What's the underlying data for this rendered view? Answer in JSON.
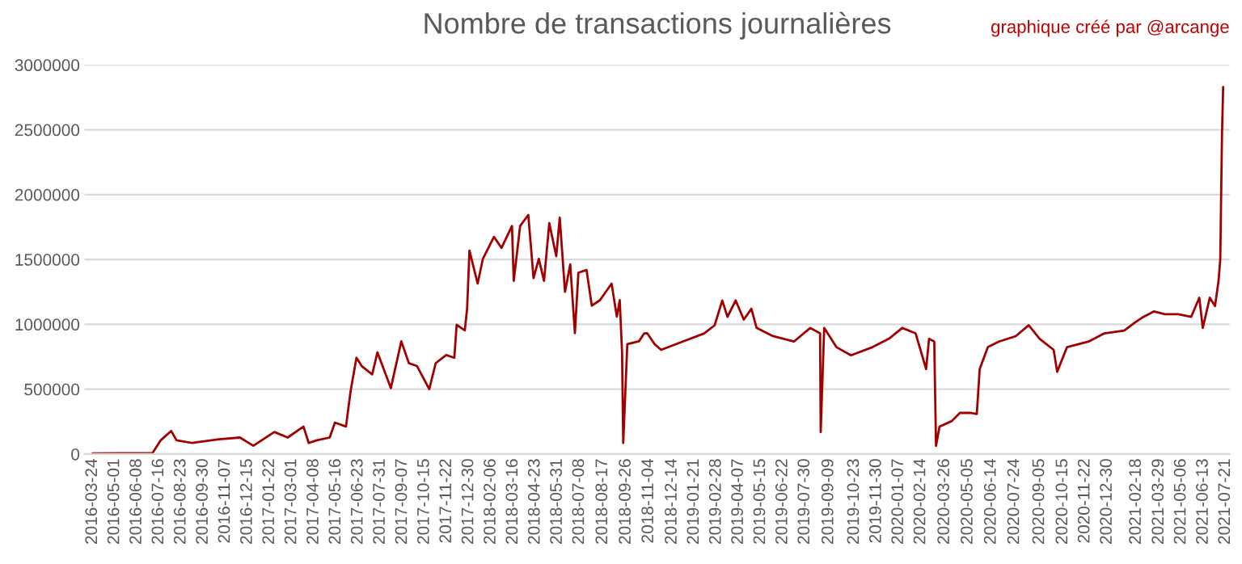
{
  "chart_data": {
    "type": "line",
    "title": "Nombre de transactions journalières",
    "annotations": [
      "graphique créé par @arcange"
    ],
    "x": [
      "2016-03-24",
      "2016-07-05",
      "2016-07-19",
      "2016-08-06",
      "2016-08-15",
      "2016-09-11",
      "2016-10-27",
      "2016-12-02",
      "2016-12-25",
      "2017-01-30",
      "2017-02-22",
      "2017-03-21",
      "2017-03-30",
      "2017-04-13",
      "2017-05-05",
      "2017-05-14",
      "2017-06-02",
      "2017-06-10",
      "2017-06-20",
      "2017-06-29",
      "2017-07-17",
      "2017-07-26",
      "2017-08-18",
      "2017-09-05",
      "2017-09-18",
      "2017-10-02",
      "2017-10-23",
      "2017-11-03",
      "2017-11-21",
      "2017-12-05",
      "2017-12-09",
      "2017-12-23",
      "2017-12-27",
      "2017-12-31",
      "2018-01-14",
      "2018-01-23",
      "2018-02-11",
      "2018-02-24",
      "2018-03-14",
      "2018-03-17",
      "2018-03-28",
      "2018-04-11",
      "2018-04-20",
      "2018-04-29",
      "2018-05-08",
      "2018-05-17",
      "2018-05-29",
      "2018-06-04",
      "2018-06-13",
      "2018-06-22",
      "2018-06-30",
      "2018-07-06",
      "2018-07-20",
      "2018-07-29",
      "2018-08-12",
      "2018-09-01",
      "2018-09-10",
      "2018-09-15",
      "2018-09-19",
      "2018-09-21",
      "2018-09-28",
      "2018-10-18",
      "2018-10-27",
      "2018-11-01",
      "2018-11-14",
      "2018-11-25",
      "2019-01-01",
      "2019-02-07",
      "2019-02-25",
      "2019-03-10",
      "2019-03-19",
      "2019-04-02",
      "2019-04-16",
      "2019-04-29",
      "2019-05-08",
      "2019-06-05",
      "2019-07-11",
      "2019-08-08",
      "2019-08-25",
      "2019-08-26",
      "2019-09-01",
      "2019-09-22",
      "2019-10-17",
      "2019-11-23",
      "2019-12-21",
      "2020-01-13",
      "2020-02-05",
      "2020-02-23",
      "2020-02-28",
      "2020-03-08",
      "2020-03-11",
      "2020-03-17",
      "2020-04-07",
      "2020-04-21",
      "2020-05-10",
      "2020-05-20",
      "2020-05-25",
      "2020-06-08",
      "2020-06-27",
      "2020-07-26",
      "2020-08-17",
      "2020-09-05",
      "2020-09-29",
      "2020-10-05",
      "2020-10-22",
      "2020-11-28",
      "2020-12-25",
      "2021-01-28",
      "2021-02-16",
      "2021-03-02",
      "2021-03-20",
      "2021-04-08",
      "2021-05-01",
      "2021-05-23",
      "2021-06-06",
      "2021-06-12",
      "2021-06-24",
      "2021-07-03",
      "2021-07-09",
      "2021-07-12",
      "2021-07-15",
      "2021-07-17"
    ],
    "series": [
      {
        "color": "#a00000",
        "values": [
          5000,
          8000,
          106000,
          178000,
          106000,
          85000,
          114000,
          127000,
          64000,
          170000,
          127000,
          212000,
          85000,
          106000,
          127000,
          242000,
          212000,
          487000,
          742000,
          678000,
          614000,
          784000,
          508000,
          869000,
          700000,
          678000,
          500000,
          700000,
          763000,
          742000,
          996000,
          953000,
          1123000,
          1568000,
          1314000,
          1504000,
          1674000,
          1589000,
          1758000,
          1335000,
          1758000,
          1843000,
          1356000,
          1504000,
          1335000,
          1780000,
          1525000,
          1822000,
          1250000,
          1462000,
          932000,
          1398000,
          1419000,
          1144000,
          1186000,
          1314000,
          1059000,
          1186000,
          784000,
          85000,
          847000,
          869000,
          930000,
          932000,
          847000,
          803000,
          867000,
          930000,
          993000,
          1184000,
          1057000,
          1184000,
          1036000,
          1120000,
          972000,
          909000,
          867000,
          972000,
          930000,
          169000,
          972000,
          824000,
          761000,
          824000,
          888000,
          972000,
          930000,
          655000,
          888000,
          867000,
          63000,
          211000,
          254000,
          317000,
          317000,
          309000,
          655000,
          824000,
          867000,
          909000,
          993000,
          888000,
          803000,
          634000,
          824000,
          867000,
          930000,
          951000,
          1015000,
          1057000,
          1099000,
          1078000,
          1078000,
          1057000,
          1205000,
          972000,
          1205000,
          1141000,
          1332000,
          1500000,
          2470000,
          2830000
        ]
      }
    ],
    "xlim": [
      "2016-03-10",
      "2021-07-28"
    ],
    "xticks": [
      "2016-03-24",
      "2016-05-01",
      "2016-06-08",
      "2016-07-16",
      "2016-08-23",
      "2016-09-30",
      "2016-11-07",
      "2016-12-15",
      "2017-01-22",
      "2017-03-01",
      "2017-04-08",
      "2017-05-16",
      "2017-06-23",
      "2017-07-31",
      "2017-09-07",
      "2017-10-15",
      "2017-11-22",
      "2017-12-30",
      "2018-02-06",
      "2018-03-16",
      "2018-04-23",
      "2018-05-31",
      "2018-07-08",
      "2018-08-17",
      "2018-09-26",
      "2018-11-04",
      "2018-12-14",
      "2019-01-21",
      "2019-02-28",
      "2019-04-07",
      "2019-05-15",
      "2019-06-22",
      "2019-07-30",
      "2019-09-09",
      "2019-10-23",
      "2019-11-30",
      "2020-01-07",
      "2020-02-14",
      "2020-03-26",
      "2020-05-05",
      "2020-06-14",
      "2020-07-24",
      "2020-09-05",
      "2020-10-15",
      "2020-11-22",
      "2020-12-30",
      "2021-02-18",
      "2021-03-29",
      "2021-05-06",
      "2021-06-13",
      "2021-07-21"
    ],
    "ylim": [
      0,
      3000000
    ],
    "yticks": [
      0,
      500000,
      1000000,
      1500000,
      2000000,
      2500000,
      3000000
    ],
    "grid": "y",
    "legend": false,
    "marker": "none",
    "line_style": "solid"
  }
}
